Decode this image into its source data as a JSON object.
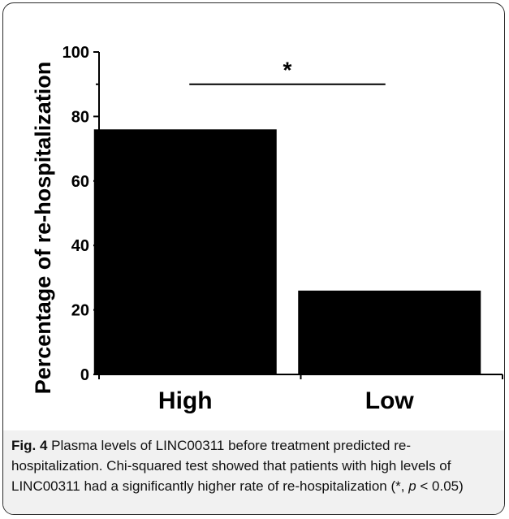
{
  "chart_data": {
    "type": "bar",
    "categories": [
      "High",
      "Low"
    ],
    "values": [
      76,
      26
    ],
    "ylabel": "Percentage of re-hospitalization",
    "xlabel": "",
    "ylim": [
      0,
      100
    ],
    "yticks": [
      "0",
      "20",
      "40",
      "60",
      "80",
      "100"
    ],
    "grid": false,
    "bar_color": "#000000",
    "significance": {
      "between": [
        "High",
        "Low"
      ],
      "marker": "*"
    }
  },
  "caption": {
    "label": "Fig. 4",
    "text_before_p": " Plasma levels of LINC00311 before treatment predicted re-hospitalization. Chi-squared test showed that patients with high levels of LINC00311 had a significantly higher rate of re-hospitalization (*, ",
    "p_symbol": "p",
    "text_after_p": " < 0.05)"
  }
}
